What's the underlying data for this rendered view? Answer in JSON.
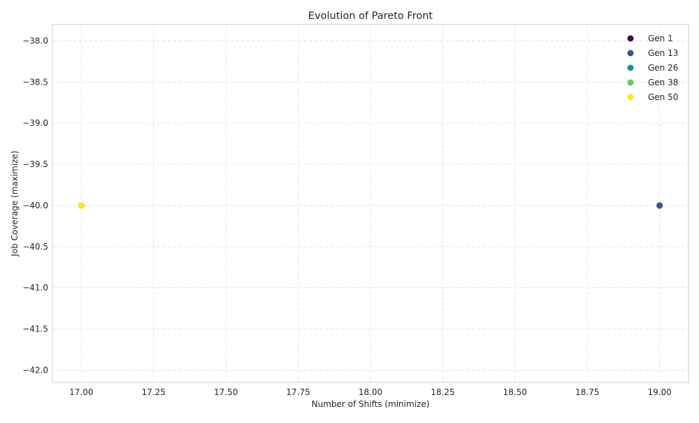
{
  "chart_data": {
    "type": "scatter",
    "title": "Evolution of Pareto Front",
    "xlabel": "Number of Shifts (minimize)",
    "ylabel": "Job Coverage (maximize)",
    "xlim": [
      16.9,
      19.1
    ],
    "ylim": [
      -42.15,
      -37.8
    ],
    "xticks": [
      "17.00",
      "17.25",
      "17.50",
      "17.75",
      "18.00",
      "18.25",
      "18.50",
      "18.75",
      "19.00"
    ],
    "yticks": [
      "−38.0",
      "−38.5",
      "−39.0",
      "−39.5",
      "−40.0",
      "−40.5",
      "−41.0",
      "−41.5",
      "−42.0"
    ],
    "grid": true,
    "legend_position": "top-right",
    "series": [
      {
        "name": "Gen 1",
        "color": "#440154",
        "points": [
          [
            19,
            -40
          ]
        ]
      },
      {
        "name": "Gen 13",
        "color": "#3b528b",
        "points": [
          [
            19,
            -40
          ],
          [
            17,
            -40
          ]
        ]
      },
      {
        "name": "Gen 26",
        "color": "#21918c",
        "points": [
          [
            17,
            -40
          ]
        ]
      },
      {
        "name": "Gen 38",
        "color": "#5ec962",
        "points": [
          [
            17,
            -40
          ]
        ]
      },
      {
        "name": "Gen 50",
        "color": "#fde725",
        "points": [
          [
            17,
            -40
          ]
        ]
      }
    ]
  }
}
